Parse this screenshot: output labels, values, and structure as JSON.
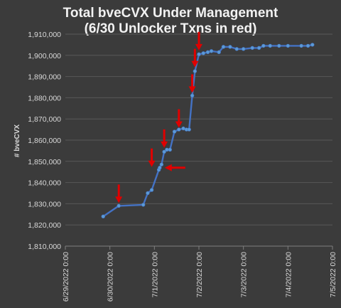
{
  "chart_data": {
    "type": "line",
    "title_line1": "Total bveCVX Under Management",
    "title_line2": "(6/30 Unlocker Txns in red)",
    "xlabel": "",
    "ylabel": "# bveCVX",
    "ylim": [
      1810000,
      1910000
    ],
    "yticks": [
      1810000,
      1820000,
      1830000,
      1840000,
      1850000,
      1860000,
      1870000,
      1880000,
      1890000,
      1900000,
      1910000
    ],
    "ytick_labels": [
      "1,810,000",
      "1,820,000",
      "1,830,000",
      "1,840,000",
      "1,850,000",
      "1,860,000",
      "1,870,000",
      "1,880,000",
      "1,890,000",
      "1,900,000",
      "1,910,000"
    ],
    "xlim_days": [
      0,
      6
    ],
    "xticks": [
      0,
      1,
      2,
      3,
      4,
      5,
      6
    ],
    "xtick_labels": [
      "6/29/2022 0:00",
      "6/30/2022 0:00",
      "7/1/2022 0:00",
      "7/2/2022 0:00",
      "7/3/2022 0:00",
      "7/4/2022 0:00",
      "7/5/2022 0:00"
    ],
    "grid": true,
    "line_color": "#4472c4",
    "marker_color": "#5b9bd5",
    "annotation_color": "#e00000",
    "series": [
      {
        "x": [
          0.85,
          1.2,
          1.75,
          1.85,
          1.94,
          2.1,
          2.12,
          2.16,
          2.22,
          2.28,
          2.35,
          2.45,
          2.55,
          2.65,
          2.72,
          2.78,
          2.85,
          2.91,
          3.0,
          3.1,
          3.2,
          3.28,
          3.45,
          3.55,
          3.7,
          3.85,
          4.0,
          4.2,
          4.35,
          4.45,
          4.6,
          4.8,
          5.0,
          5.3,
          5.45,
          5.55
        ],
        "y": [
          1824000,
          1829000,
          1829500,
          1835000,
          1836500,
          1846000,
          1847000,
          1848500,
          1854500,
          1855500,
          1855500,
          1864000,
          1865000,
          1865500,
          1865000,
          1865000,
          1881000,
          1892500,
          1900500,
          1901000,
          1901500,
          1902000,
          1901500,
          1904000,
          1904000,
          1903000,
          1903000,
          1903500,
          1903500,
          1904500,
          1904500,
          1904500,
          1904500,
          1904500,
          1904500,
          1905000
        ]
      }
    ],
    "arrows": [
      {
        "direction": "down",
        "x": 1.2,
        "y": 1829000
      },
      {
        "direction": "down",
        "x": 1.94,
        "y": 1846000
      },
      {
        "direction": "left",
        "x": 2.12,
        "y": 1847000
      },
      {
        "direction": "down",
        "x": 2.22,
        "y": 1855000
      },
      {
        "direction": "down",
        "x": 2.55,
        "y": 1864500
      },
      {
        "direction": "down",
        "x": 2.85,
        "y": 1881000
      },
      {
        "direction": "down",
        "x": 2.91,
        "y": 1893000
      },
      {
        "direction": "down",
        "x": 3.0,
        "y": 1901000
      }
    ]
  }
}
